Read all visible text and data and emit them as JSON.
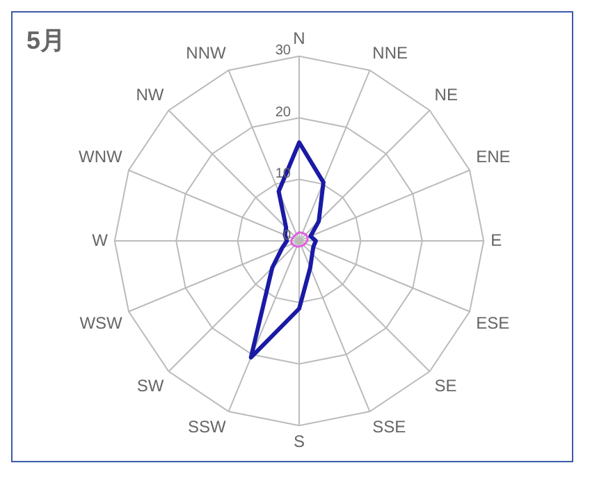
{
  "chart_data": {
    "type": "radar",
    "title": "5月",
    "categories": [
      "N",
      "NNE",
      "NE",
      "ENE",
      "E",
      "ESE",
      "SE",
      "SSE",
      "S",
      "SSW",
      "SW",
      "WSW",
      "W",
      "WNW",
      "NW",
      "NNW"
    ],
    "series": [
      {
        "color": "#1a1aa6",
        "values": [
          16,
          10.3,
          4.5,
          2,
          2.7,
          2.5,
          3,
          4.7,
          11,
          20.5,
          6.2,
          3,
          2,
          2.5,
          3,
          8.7
        ]
      },
      {
        "color": "#e060e0",
        "values": [
          1.4,
          1.4,
          1.5,
          1.5,
          1.3,
          1.1,
          1,
          0.9,
          0.9,
          1,
          1.1,
          1.3,
          1.3,
          1.2,
          1.1,
          1.2
        ]
      }
    ],
    "ylim": [
      0,
      30
    ],
    "yticks": [
      0,
      10,
      20,
      30
    ],
    "grid": true,
    "legend": false,
    "marker": "none"
  }
}
